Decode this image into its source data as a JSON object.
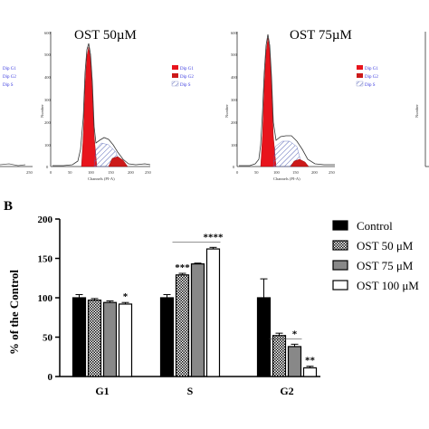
{
  "histograms": {
    "panel_middle": {
      "title": "OST 50µM"
    },
    "panel_right": {
      "title": "OST 75µM"
    },
    "axis": {
      "ylabel": "Number",
      "xlabel": "Channels (PI-A)",
      "xticks": [
        "0",
        "50",
        "100",
        "150",
        "200",
        "250"
      ],
      "yticks": [
        "0",
        "100",
        "200",
        "300",
        "400",
        "500",
        "600"
      ]
    },
    "legend": [
      "Dip G1",
      "Dip G2",
      "Dip S"
    ],
    "left_partial_legend": [
      "Dip G1",
      "Dip G2",
      "Dip S"
    ],
    "left_partial_xtick": "250",
    "colors": {
      "g1": "#e8141c",
      "g2": "#cc1a1a",
      "s_hatch": "#5a68b8"
    }
  },
  "panel_b_label": "B",
  "chart_data": {
    "type": "bar",
    "title": "",
    "xlabel": "",
    "ylabel": "% of the Control",
    "ylim": [
      0,
      200
    ],
    "yticks": [
      "0",
      "50",
      "100",
      "150",
      "200"
    ],
    "categories": [
      "G1",
      "S",
      "G2"
    ],
    "series": [
      {
        "name": "Control",
        "values": [
          100,
          100,
          100
        ],
        "errors": [
          4,
          4,
          24
        ],
        "pattern": "solid"
      },
      {
        "name": "OST 50 μM",
        "values": [
          97,
          129,
          52
        ],
        "errors": [
          2,
          2,
          3
        ],
        "pattern": "checker"
      },
      {
        "name": "OST 75 μM",
        "values": [
          94,
          143,
          38
        ],
        "errors": [
          2,
          1,
          3
        ],
        "pattern": "gray"
      },
      {
        "name": "OST 100 μM",
        "values": [
          92,
          162,
          11
        ],
        "errors": [
          2,
          2,
          2
        ],
        "pattern": "white"
      }
    ],
    "significance": [
      {
        "category": 0,
        "series": 3,
        "label": "*"
      },
      {
        "category": 1,
        "series": 1,
        "label": "***"
      },
      {
        "category": 1,
        "series": 3,
        "label": "****"
      },
      {
        "category": 2,
        "series": 2,
        "label": "*"
      },
      {
        "category": 2,
        "series": 3,
        "label": "**"
      }
    ],
    "legend_position": "right"
  }
}
